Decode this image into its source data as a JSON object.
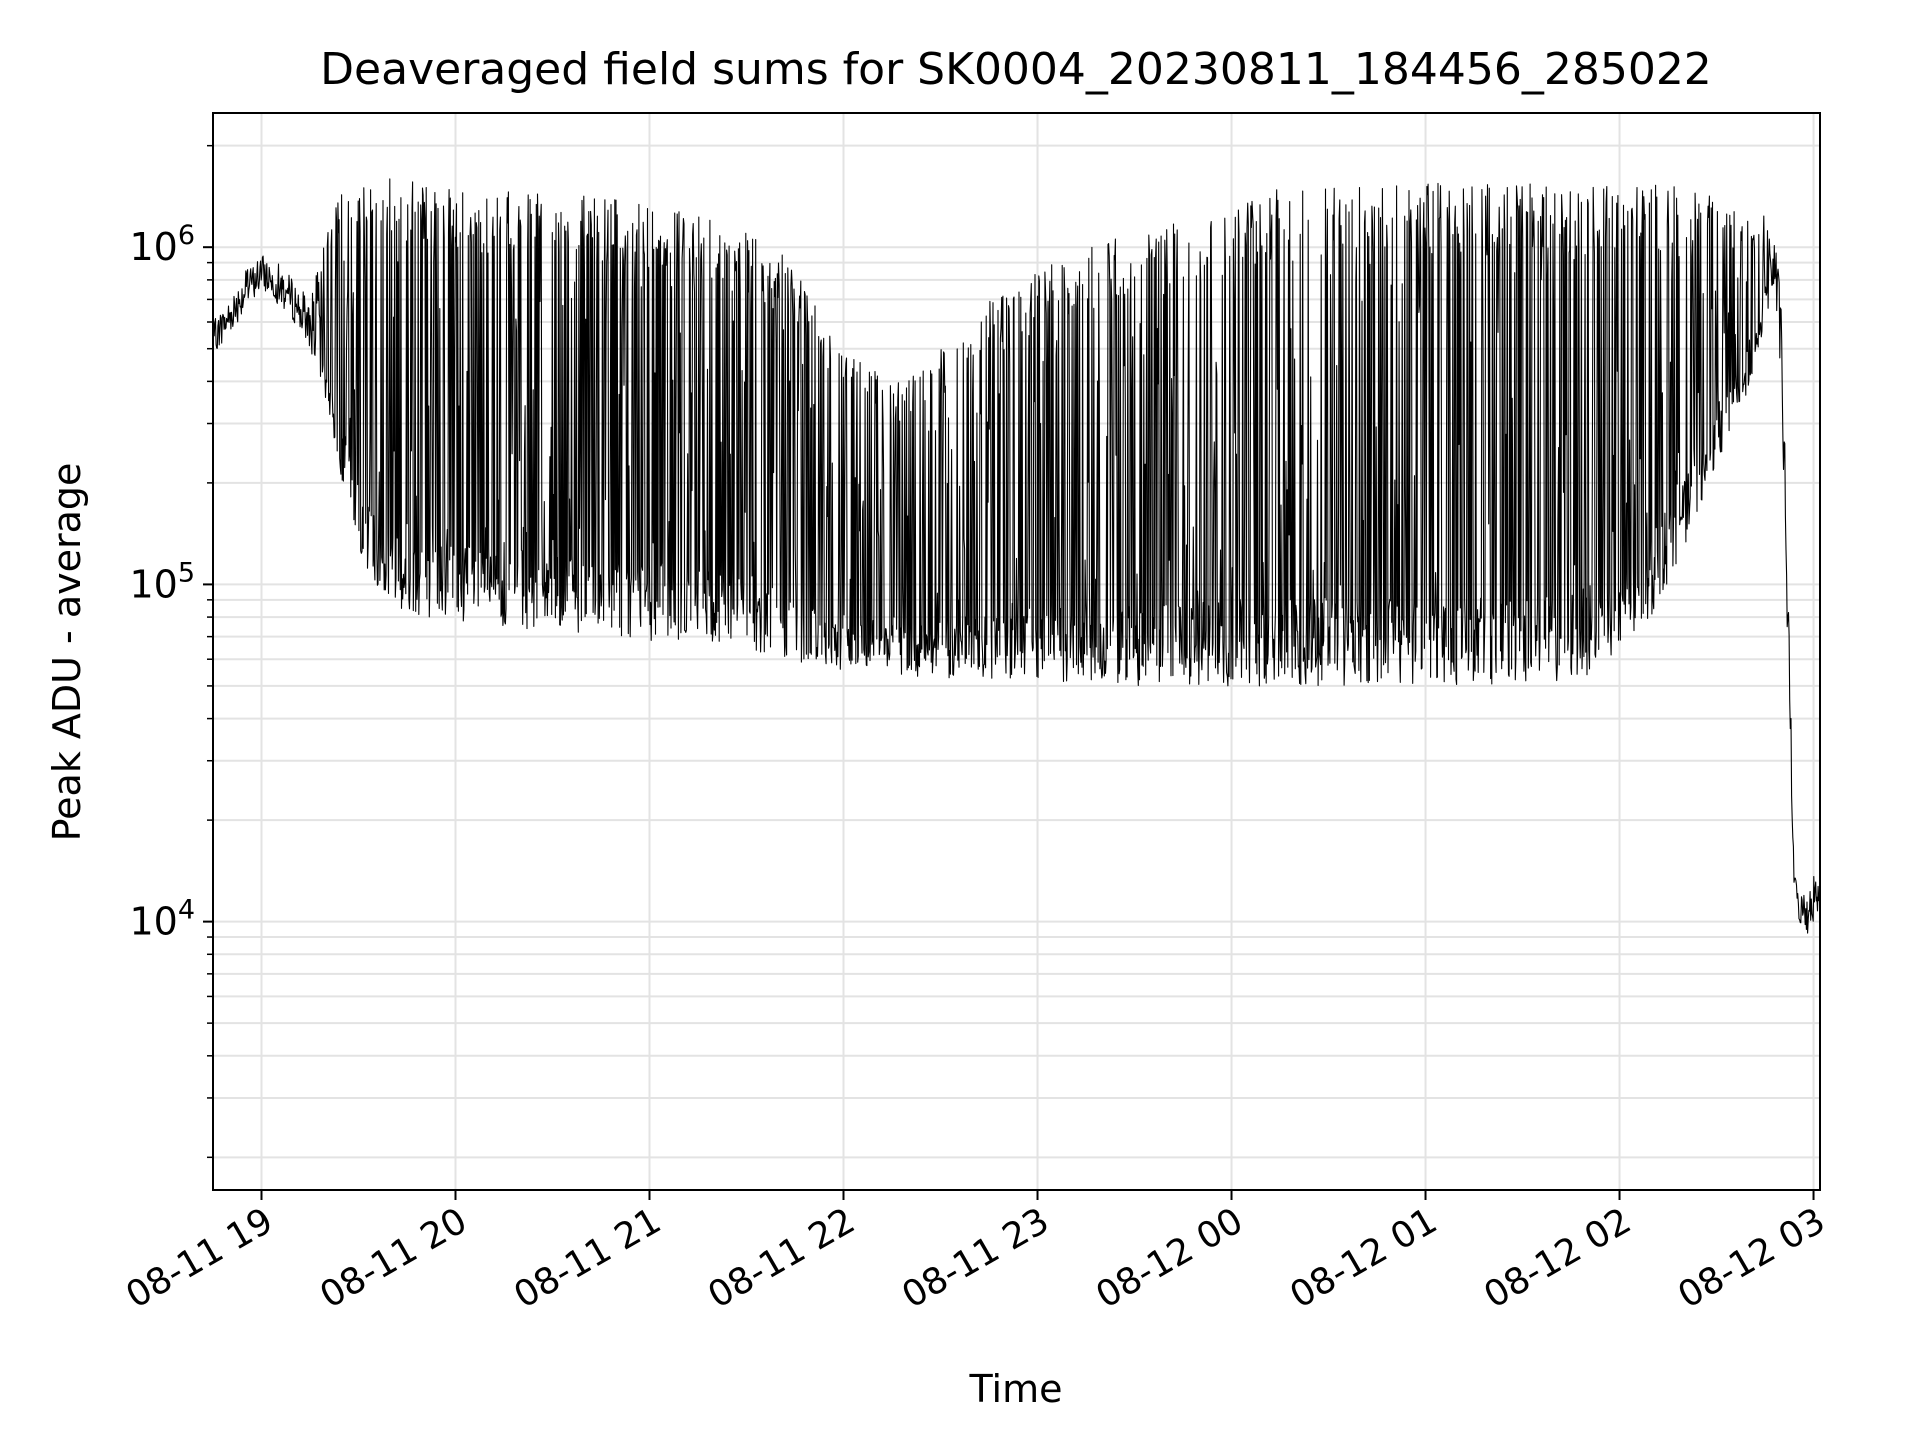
{
  "chart_data": {
    "type": "line",
    "title": "Deaveraged field sums for SK0004_20230811_184456_285022",
    "xlabel": "Time",
    "ylabel": "Peak ADU - average",
    "x_axis_type": "datetime",
    "xlim": [
      "2023-08-11 18:45",
      "2023-08-12 03:02"
    ],
    "x_ticks": [
      {
        "value": "2023-08-11 19:00",
        "label": "08-11 19"
      },
      {
        "value": "2023-08-11 20:00",
        "label": "08-11 20"
      },
      {
        "value": "2023-08-11 21:00",
        "label": "08-11 21"
      },
      {
        "value": "2023-08-11 22:00",
        "label": "08-11 22"
      },
      {
        "value": "2023-08-11 23:00",
        "label": "08-11 23"
      },
      {
        "value": "2023-08-12 00:00",
        "label": "08-12 00"
      },
      {
        "value": "2023-08-12 01:00",
        "label": "08-12 01"
      },
      {
        "value": "2023-08-12 02:00",
        "label": "08-12 02"
      },
      {
        "value": "2023-08-12 03:00",
        "label": "08-12 03"
      }
    ],
    "y_scale": "log",
    "ylim": [
      1600,
      2500000
    ],
    "y_ticks": [
      {
        "value": 10000,
        "base": "10",
        "exp": "4"
      },
      {
        "value": 100000,
        "base": "10",
        "exp": "5"
      },
      {
        "value": 1000000,
        "base": "10",
        "exp": "6"
      }
    ],
    "grid": true,
    "line_color": "#000000",
    "series": [
      {
        "envelope": {
          "t": [
            "2023-08-11 18:45",
            "2023-08-11 18:50",
            "2023-08-11 18:55",
            "2023-08-11 19:00",
            "2023-08-11 19:05",
            "2023-08-11 19:10",
            "2023-08-11 19:15",
            "2023-08-11 19:20",
            "2023-08-11 19:25",
            "2023-08-11 19:30",
            "2023-08-11 19:35",
            "2023-08-11 19:40",
            "2023-08-11 19:45",
            "2023-08-11 19:50",
            "2023-08-11 19:55",
            "2023-08-11 20:00",
            "2023-08-11 20:15",
            "2023-08-11 20:30",
            "2023-08-11 20:45",
            "2023-08-11 21:00",
            "2023-08-11 21:15",
            "2023-08-11 21:30",
            "2023-08-11 21:45",
            "2023-08-11 22:00",
            "2023-08-11 22:15",
            "2023-08-11 22:30",
            "2023-08-11 22:45",
            "2023-08-11 23:00",
            "2023-08-11 23:15",
            "2023-08-11 23:30",
            "2023-08-11 23:45",
            "2023-08-12 00:00",
            "2023-08-12 00:15",
            "2023-08-12 00:30",
            "2023-08-12 00:45",
            "2023-08-12 01:00",
            "2023-08-12 01:15",
            "2023-08-12 01:30",
            "2023-08-12 01:45",
            "2023-08-12 02:00",
            "2023-08-12 02:10",
            "2023-08-12 02:20",
            "2023-08-12 02:30",
            "2023-08-12 02:35",
            "2023-08-12 02:40",
            "2023-08-12 02:45",
            "2023-08-12 02:48",
            "2023-08-12 02:50",
            "2023-08-12 02:52",
            "2023-08-12 02:54",
            "2023-08-12 02:56",
            "2023-08-12 02:58",
            "2023-08-12 03:00",
            "2023-08-12 03:02"
          ],
          "low": [
            480000,
            550000,
            650000,
            750000,
            680000,
            600000,
            500000,
            350000,
            200000,
            130000,
            95000,
            85000,
            82000,
            80000,
            80000,
            78000,
            75000,
            72000,
            70000,
            68000,
            68000,
            65000,
            58000,
            55000,
            53000,
            52000,
            52000,
            52000,
            51000,
            50000,
            50000,
            50000,
            50000,
            50000,
            50000,
            50000,
            50000,
            50000,
            52000,
            58000,
            80000,
            130000,
            220000,
            300000,
            380000,
            600000,
            700000,
            400000,
            60000,
            12000,
            9500,
            9000,
            10000,
            11000
          ],
          "high": [
            600000,
            700000,
            850000,
            950000,
            900000,
            800000,
            700000,
            1100000,
            1500000,
            1600000,
            1600000,
            1600000,
            1600000,
            1600000,
            1600000,
            1500000,
            1500000,
            1450000,
            1400000,
            1350000,
            1250000,
            1100000,
            900000,
            500000,
            400000,
            500000,
            700000,
            900000,
            1000000,
            1100000,
            1200000,
            1400000,
            1500000,
            1550000,
            1550000,
            1550000,
            1550000,
            1550000,
            1550000,
            1550000,
            1550000,
            1500000,
            1400000,
            1300000,
            1200000,
            1250000,
            1100000,
            700000,
            120000,
            14000,
            12000,
            13000,
            14000,
            13000
          ]
        }
      }
    ]
  }
}
